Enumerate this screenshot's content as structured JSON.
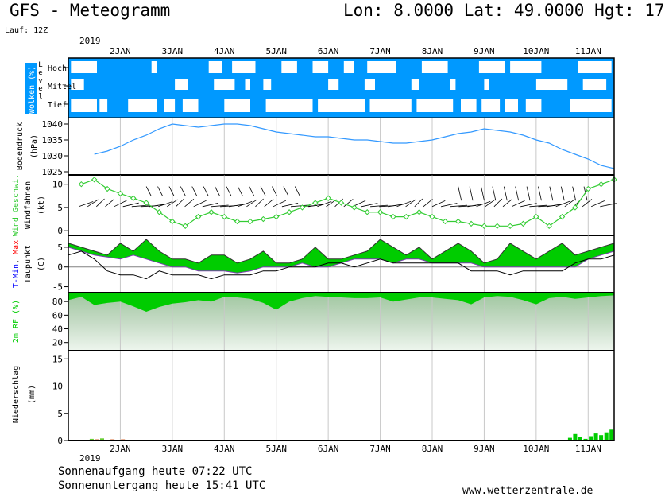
{
  "header": {
    "title": "GFS - Meteogramm",
    "coords": "Lon: 8.0000 Lat: 49.0000 Hgt: 17",
    "run": "Lauf: 12Z"
  },
  "footer": {
    "sunrise": "Sonnenaufgang heute 07:22 UTC",
    "sunset": "Sonnenuntergang heute 15:41 UTC",
    "site": "www.wetterzentrale.de"
  },
  "colors": {
    "sky": "#0099ff",
    "green": "#00cc00",
    "pressure_line": "#3399ff",
    "wind_line": "#33cc33",
    "tmin": "#0000ff",
    "tmax": "#ff0000",
    "humidity_bg": "#bfe0bf",
    "grid": "#c8c8c8",
    "ref": "#808080"
  },
  "chart_data": {
    "x_axis": {
      "top_year": "2019",
      "bottom_year": "2019",
      "ticks": [
        "2JAN",
        "3JAN",
        "4JAN",
        "5JAN",
        "6JAN",
        "7JAN",
        "8JAN",
        "9JAN",
        "10JAN",
        "11JAN"
      ]
    },
    "panels": [
      {
        "id": "clouds",
        "type": "heatmap",
        "ylabel_main": "Wolken (%)",
        "ylabel_sub": "Level",
        "levels": [
          "Hoch",
          "Mittel",
          "Tief"
        ]
      },
      {
        "id": "pressure",
        "type": "line",
        "ylabel": "Bodendruck",
        "yunit": "(hPa)",
        "ylim": [
          1024,
          1042
        ],
        "yticks": [
          1025,
          1030,
          1035,
          1040
        ],
        "x": [
          1.5,
          1.75,
          2.0,
          2.25,
          2.5,
          2.75,
          3.0,
          3.25,
          3.5,
          3.75,
          4.0,
          4.25,
          4.5,
          4.75,
          5.0,
          5.25,
          5.5,
          5.75,
          6.0,
          6.25,
          6.5,
          6.75,
          7.0,
          7.25,
          7.5,
          7.75,
          8.0,
          8.25,
          8.5,
          8.75,
          9.0,
          9.25,
          9.5,
          9.75,
          10.0,
          10.25,
          10.5,
          10.75,
          11.0,
          11.25,
          11.5
        ],
        "values": [
          1030.5,
          1031.5,
          1033,
          1035,
          1036.5,
          1038.5,
          1040,
          1039.5,
          1039,
          1039.5,
          1040,
          1040,
          1039.5,
          1038.5,
          1037.5,
          1037,
          1036.5,
          1036,
          1036,
          1035.5,
          1035,
          1035,
          1034.5,
          1034,
          1034,
          1034.5,
          1035,
          1036,
          1037,
          1037.5,
          1038.5,
          1038,
          1037.5,
          1036.5,
          1035,
          1034,
          1032,
          1030.5,
          1029,
          1027,
          1026
        ]
      },
      {
        "id": "wind",
        "type": "line",
        "ylabel_main": "Wind Geschwi.",
        "ylabel_sub": "Windfahnen",
        "yunit": "(kt)",
        "ylim": [
          -1,
          12
        ],
        "yticks": [
          0,
          5,
          10
        ],
        "x": [
          1.25,
          1.5,
          1.75,
          2.0,
          2.25,
          2.5,
          2.75,
          3.0,
          3.25,
          3.5,
          3.75,
          4.0,
          4.25,
          4.5,
          4.75,
          5.0,
          5.25,
          5.5,
          5.75,
          6.0,
          6.25,
          6.5,
          6.75,
          7.0,
          7.25,
          7.5,
          7.75,
          8.0,
          8.25,
          8.5,
          8.75,
          9.0,
          9.25,
          9.5,
          9.75,
          10.0,
          10.25,
          10.5,
          10.75,
          11.0,
          11.25,
          11.5
        ],
        "values": [
          10,
          11,
          9,
          8,
          7,
          6,
          4,
          2,
          1,
          3,
          4,
          3,
          2,
          2,
          2.5,
          3,
          4,
          5,
          6,
          7,
          6,
          5,
          4,
          4,
          3,
          3,
          4,
          3,
          2,
          2,
          1.5,
          1,
          1,
          1,
          1.5,
          3,
          1,
          3,
          5,
          9,
          10,
          11
        ]
      },
      {
        "id": "temp",
        "type": "line",
        "ylabel_parts": [
          "T-Min",
          "Max"
        ],
        "ylabel_sub": "Taupunkt",
        "yunit": "(C)",
        "ylim": [
          -6.5,
          8
        ],
        "yticks": [
          -5,
          0,
          5
        ],
        "x": [
          1.0,
          1.25,
          1.5,
          1.75,
          2.0,
          2.25,
          2.5,
          2.75,
          3.0,
          3.25,
          3.5,
          3.75,
          4.0,
          4.25,
          4.5,
          4.75,
          5.0,
          5.25,
          5.5,
          5.75,
          6.0,
          6.25,
          6.5,
          6.75,
          7.0,
          7.25,
          7.5,
          7.75,
          8.0,
          8.25,
          8.5,
          8.75,
          9.0,
          9.25,
          9.5,
          9.75,
          10.0,
          10.25,
          10.5,
          10.75,
          11.0,
          11.25,
          11.5
        ],
        "tmin": [
          5,
          4,
          3,
          2.5,
          2,
          3,
          2,
          1,
          0,
          0,
          -1,
          -1,
          -1,
          -1.5,
          -1,
          0,
          0,
          0,
          1,
          0,
          0,
          1,
          2,
          2,
          2,
          1,
          2,
          2,
          1,
          1,
          1,
          1,
          0,
          0,
          0,
          0,
          0,
          0,
          0,
          0,
          2,
          3,
          4
        ],
        "tmax": [
          6,
          5,
          4,
          3,
          6,
          4,
          7,
          4,
          2,
          2,
          1,
          3,
          3,
          1,
          2,
          4,
          1,
          1,
          2,
          5,
          2,
          2,
          3,
          4,
          7,
          5,
          3,
          5,
          2,
          4,
          6,
          4,
          1,
          2,
          6,
          4,
          2,
          4,
          6,
          3,
          4,
          5,
          6
        ],
        "dewpoint": [
          3,
          4,
          2,
          -1,
          -2,
          -2,
          -3,
          -1,
          -2,
          -2,
          -2,
          -3,
          -2,
          -2,
          -2,
          -1,
          -1,
          0,
          0,
          0,
          1,
          1,
          0,
          1,
          2,
          1,
          1,
          1,
          1,
          1,
          1,
          -1,
          -1,
          -1,
          -2,
          -1,
          -1,
          -1,
          -1,
          1,
          2,
          2,
          3
        ]
      },
      {
        "id": "humidity",
        "type": "area",
        "ylabel": "2m RF (%)",
        "ylim": [
          8,
          93
        ],
        "yticks": [
          20,
          40,
          60,
          80
        ],
        "x": [
          1.0,
          1.25,
          1.5,
          1.75,
          2.0,
          2.25,
          2.5,
          2.75,
          3.0,
          3.25,
          3.5,
          3.75,
          4.0,
          4.25,
          4.5,
          4.75,
          5.0,
          5.25,
          5.5,
          5.75,
          6.0,
          6.25,
          6.5,
          6.75,
          7.0,
          7.25,
          7.5,
          7.75,
          8.0,
          8.25,
          8.5,
          8.75,
          9.0,
          9.25,
          9.5,
          9.75,
          10.0,
          10.25,
          10.5,
          10.75,
          11.0,
          11.25,
          11.5
        ],
        "values": [
          82,
          87,
          75,
          78,
          80,
          73,
          65,
          72,
          77,
          79,
          82,
          80,
          87,
          86,
          84,
          78,
          68,
          80,
          85,
          88,
          87,
          86,
          85,
          85,
          86,
          80,
          83,
          86,
          86,
          84,
          82,
          76,
          86,
          88,
          87,
          82,
          76,
          85,
          87,
          84,
          86,
          88,
          89
        ]
      },
      {
        "id": "precip",
        "type": "bar",
        "ylabel": "Niederschlag",
        "yunit": "(mm)",
        "ylim": [
          0,
          16.5
        ],
        "yticks": [
          0,
          5,
          10,
          15
        ],
        "x": [
          1.45,
          1.55,
          1.65,
          1.85,
          1.95,
          2.05,
          3.8,
          4.0,
          5.6,
          10.65,
          10.75,
          10.85,
          10.95,
          11.05,
          11.15,
          11.25,
          11.35,
          11.45
        ],
        "values": [
          0.3,
          0.2,
          0.4,
          0.2,
          0.15,
          0.2,
          0.1,
          0.1,
          0.1,
          0.5,
          1.2,
          0.6,
          0.3,
          0.8,
          1.3,
          1.0,
          1.5,
          2.0
        ]
      }
    ]
  }
}
